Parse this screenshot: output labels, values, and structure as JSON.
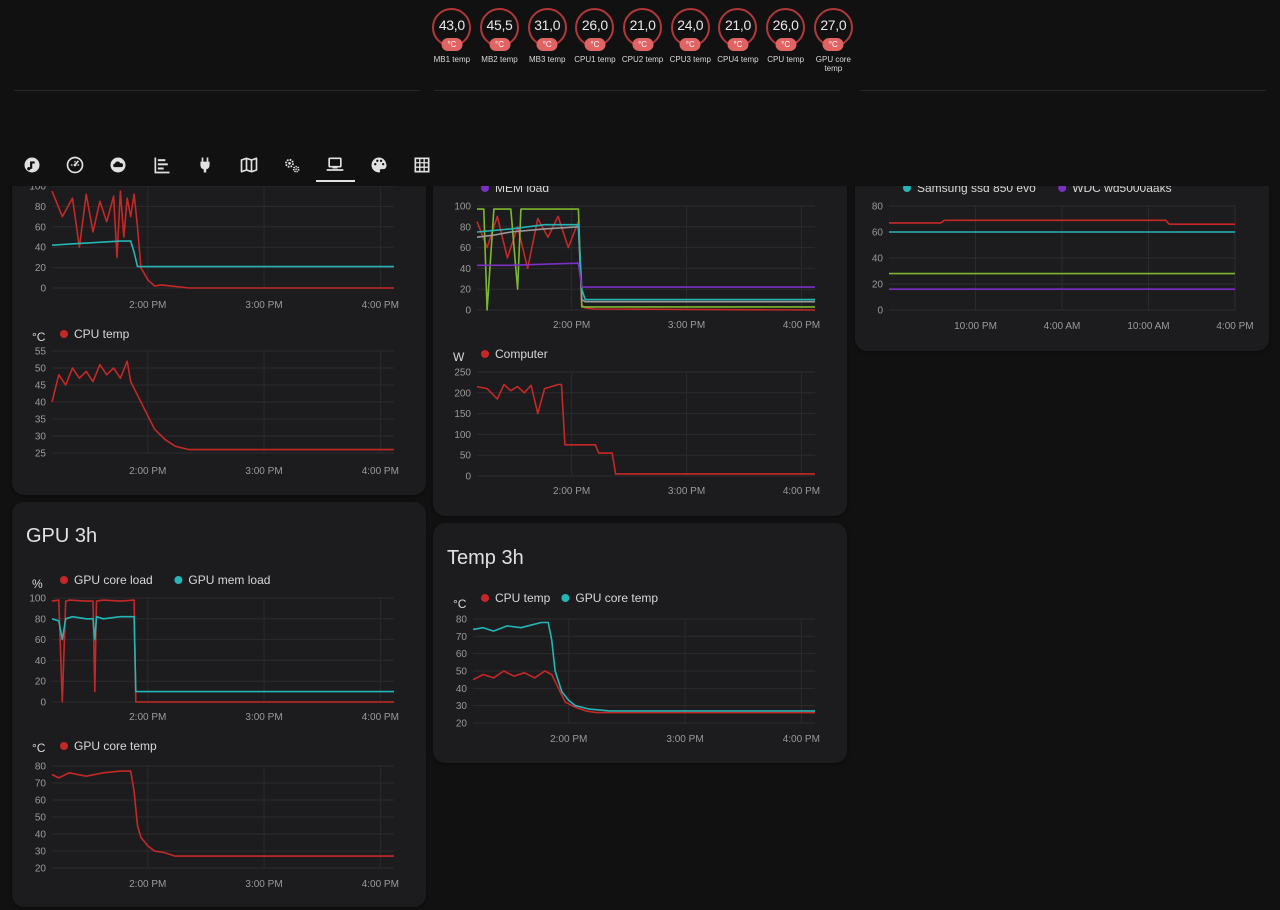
{
  "header": {
    "badges": [
      {
        "value": "43,0",
        "unit": "°C",
        "label": "MB1 temp"
      },
      {
        "value": "45,5",
        "unit": "°C",
        "label": "MB2 temp"
      },
      {
        "value": "31,0",
        "unit": "°C",
        "label": "MB3 temp"
      },
      {
        "value": "26,0",
        "unit": "°C",
        "label": "CPU1 temp"
      },
      {
        "value": "21,0",
        "unit": "°C",
        "label": "CPU2 temp"
      },
      {
        "value": "24,0",
        "unit": "°C",
        "label": "CPU3 temp"
      },
      {
        "value": "21,0",
        "unit": "°C",
        "label": "CPU4 temp"
      },
      {
        "value": "26,0",
        "unit": "°C",
        "label": "CPU temp"
      },
      {
        "value": "27,0",
        "unit": "°C",
        "label": "GPU core temp"
      }
    ],
    "tabs": [
      {
        "icon": "music-note-icon",
        "active": false
      },
      {
        "icon": "speedometer-icon",
        "active": false
      },
      {
        "icon": "cloud-icon",
        "active": false
      },
      {
        "icon": "timeline-icon",
        "active": false
      },
      {
        "icon": "power-plug-icon",
        "active": false
      },
      {
        "icon": "map-icon",
        "active": false
      },
      {
        "icon": "cogs-icon",
        "active": false
      },
      {
        "icon": "laptop-icon",
        "active": true
      },
      {
        "icon": "palette-icon",
        "active": false
      },
      {
        "icon": "grid-icon",
        "active": false
      }
    ]
  },
  "cards": {
    "gpu_title": "GPU 3h",
    "temp_title": "Temp 3h"
  },
  "colors": {
    "red": "#c62828",
    "teal": "#26b5b5",
    "purple": "#7b2fc4",
    "green": "#7cb82f",
    "gray": "#9a9a9a",
    "orange": "#d98c2b"
  },
  "chart_data": [
    {
      "id": "cpu-load",
      "type": "line",
      "unit": "",
      "x_ticks": [
        "2:00 PM",
        "3:00 PM",
        "4:00 PM"
      ],
      "y_ticks": [
        0,
        20,
        40,
        60,
        80,
        100
      ],
      "ylim": [
        0,
        100
      ],
      "legend": [],
      "series": [
        {
          "name": "",
          "color": "red",
          "x": [
            0,
            0.03,
            0.06,
            0.08,
            0.1,
            0.12,
            0.14,
            0.16,
            0.18,
            0.19,
            0.2,
            0.21,
            0.22,
            0.23,
            0.24,
            0.25,
            0.26,
            0.28,
            0.3,
            0.32,
            0.4,
            0.5,
            1.0
          ],
          "y": [
            95,
            70,
            88,
            40,
            92,
            55,
            85,
            65,
            90,
            30,
            95,
            50,
            88,
            70,
            92,
            60,
            20,
            8,
            2,
            3,
            0,
            0,
            0
          ]
        },
        {
          "name": "",
          "color": "teal",
          "x": [
            0,
            0.05,
            0.1,
            0.15,
            0.2,
            0.23,
            0.24,
            0.25,
            1.0
          ],
          "y": [
            42,
            43,
            44,
            45,
            46,
            46,
            35,
            21,
            21
          ]
        }
      ]
    },
    {
      "id": "cpu-temp",
      "type": "line",
      "unit": "°C",
      "x_ticks": [
        "2:00 PM",
        "3:00 PM",
        "4:00 PM"
      ],
      "y_ticks": [
        25,
        30,
        35,
        40,
        45,
        50,
        55
      ],
      "ylim": [
        25,
        55
      ],
      "legend": [
        "CPU temp"
      ],
      "series": [
        {
          "name": "CPU temp",
          "color": "red",
          "x": [
            0,
            0.02,
            0.04,
            0.06,
            0.08,
            0.1,
            0.12,
            0.14,
            0.16,
            0.18,
            0.2,
            0.22,
            0.23,
            0.25,
            0.27,
            0.3,
            0.33,
            0.36,
            0.4,
            0.45,
            1.0
          ],
          "y": [
            40,
            48,
            45,
            50,
            47,
            49,
            46,
            51,
            48,
            50,
            47,
            52,
            46,
            42,
            38,
            32,
            29,
            27,
            26,
            26,
            26
          ]
        }
      ]
    },
    {
      "id": "mem-load",
      "type": "line",
      "unit": "",
      "x_ticks": [
        "2:00 PM",
        "3:00 PM",
        "4:00 PM"
      ],
      "y_ticks": [
        0,
        20,
        40,
        60,
        80,
        100
      ],
      "ylim": [
        0,
        100
      ],
      "legend": [
        "MEM load"
      ],
      "series": [
        {
          "name": "",
          "color": "red",
          "x": [
            0,
            0.03,
            0.06,
            0.09,
            0.12,
            0.15,
            0.18,
            0.21,
            0.24,
            0.27,
            0.3,
            0.31,
            0.32,
            0.35,
            1.0
          ],
          "y": [
            85,
            60,
            90,
            50,
            80,
            40,
            88,
            70,
            90,
            60,
            85,
            5,
            2,
            1,
            0
          ]
        },
        {
          "name": "",
          "color": "green",
          "x": [
            0,
            0.02,
            0.03,
            0.05,
            0.1,
            0.12,
            0.13,
            0.15,
            0.2,
            0.25,
            0.3,
            0.31,
            0.32,
            1.0
          ],
          "y": [
            97,
            97,
            0,
            97,
            97,
            20,
            97,
            97,
            97,
            97,
            97,
            3,
            3,
            3
          ]
        },
        {
          "name": "",
          "color": "gray",
          "x": [
            0,
            0.05,
            0.1,
            0.2,
            0.3,
            0.31,
            0.32,
            1.0
          ],
          "y": [
            70,
            72,
            75,
            78,
            80,
            10,
            8,
            8
          ]
        },
        {
          "name": "",
          "color": "teal",
          "x": [
            0,
            0.1,
            0.2,
            0.3,
            0.31,
            0.32,
            1.0
          ],
          "y": [
            75,
            78,
            82,
            82,
            20,
            10,
            10
          ]
        },
        {
          "name": "MEM load",
          "color": "purple",
          "x": [
            0,
            0.1,
            0.2,
            0.3,
            0.31,
            0.32,
            1.0
          ],
          "y": [
            43,
            43,
            44,
            45,
            22,
            22,
            22
          ]
        }
      ]
    },
    {
      "id": "computer-power",
      "type": "line",
      "unit": "W",
      "x_ticks": [
        "2:00 PM",
        "3:00 PM",
        "4:00 PM"
      ],
      "y_ticks": [
        0,
        50,
        100,
        150,
        200,
        250
      ],
      "ylim": [
        0,
        250
      ],
      "legend": [
        "Computer"
      ],
      "series": [
        {
          "name": "Computer",
          "color": "red",
          "x": [
            0,
            0.03,
            0.06,
            0.08,
            0.1,
            0.12,
            0.14,
            0.16,
            0.18,
            0.2,
            0.22,
            0.24,
            0.25,
            0.26,
            0.3,
            0.35,
            0.36,
            0.4,
            0.41,
            1.0
          ],
          "y": [
            215,
            210,
            185,
            220,
            205,
            215,
            200,
            218,
            150,
            210,
            215,
            220,
            220,
            75,
            75,
            75,
            55,
            55,
            5,
            5
          ]
        }
      ]
    },
    {
      "id": "storage-temp",
      "type": "line",
      "unit": "",
      "x_ticks": [
        "10:00 PM",
        "4:00 AM",
        "10:00 AM",
        "4:00 PM"
      ],
      "y_ticks": [
        0,
        20,
        40,
        60,
        80
      ],
      "ylim": [
        0,
        80
      ],
      "legend": [
        "Samsung ssd 850 evo",
        "WDC wd5000aaks"
      ],
      "series": [
        {
          "name": "",
          "color": "red",
          "x": [
            0,
            0.15,
            0.16,
            0.5,
            0.8,
            0.81,
            1.0
          ],
          "y": [
            67,
            67,
            69,
            69,
            69,
            66,
            66
          ]
        },
        {
          "name": "Samsung ssd 850 evo",
          "color": "teal",
          "x": [
            0,
            1.0
          ],
          "y": [
            60,
            60
          ]
        },
        {
          "name": "",
          "color": "green",
          "x": [
            0,
            1.0
          ],
          "y": [
            28,
            28
          ]
        },
        {
          "name": "WDC wd5000aaks",
          "color": "purple",
          "x": [
            0,
            1.0
          ],
          "y": [
            16,
            16
          ]
        }
      ]
    },
    {
      "id": "gpu-load",
      "type": "line",
      "unit": "%",
      "x_ticks": [
        "2:00 PM",
        "3:00 PM",
        "4:00 PM"
      ],
      "y_ticks": [
        0,
        20,
        40,
        60,
        80,
        100
      ],
      "ylim": [
        0,
        100
      ],
      "legend": [
        "GPU core load",
        "GPU mem load"
      ],
      "series": [
        {
          "name": "GPU core load",
          "color": "red",
          "x": [
            0,
            0.02,
            0.03,
            0.04,
            0.05,
            0.1,
            0.12,
            0.125,
            0.13,
            0.15,
            0.2,
            0.24,
            0.245,
            1.0
          ],
          "y": [
            97,
            98,
            0,
            97,
            98,
            97,
            97,
            10,
            97,
            98,
            97,
            98,
            0,
            0
          ]
        },
        {
          "name": "GPU mem load",
          "color": "teal",
          "x": [
            0,
            0.02,
            0.03,
            0.04,
            0.06,
            0.1,
            0.12,
            0.125,
            0.13,
            0.15,
            0.2,
            0.24,
            0.245,
            1.0
          ],
          "y": [
            80,
            78,
            60,
            80,
            82,
            80,
            80,
            60,
            82,
            80,
            82,
            82,
            10,
            10
          ]
        }
      ]
    },
    {
      "id": "gpu-temp",
      "type": "line",
      "unit": "°C",
      "x_ticks": [
        "2:00 PM",
        "3:00 PM",
        "4:00 PM"
      ],
      "y_ticks": [
        20,
        30,
        40,
        50,
        60,
        70,
        80
      ],
      "ylim": [
        20,
        80
      ],
      "legend": [
        "GPU core temp"
      ],
      "series": [
        {
          "name": "GPU core temp",
          "color": "red",
          "x": [
            0,
            0.02,
            0.05,
            0.1,
            0.15,
            0.2,
            0.23,
            0.24,
            0.25,
            0.26,
            0.28,
            0.3,
            0.33,
            0.36,
            0.4,
            1.0
          ],
          "y": [
            75,
            73,
            76,
            74,
            76,
            77,
            77,
            65,
            45,
            38,
            33,
            30,
            29,
            27,
            27,
            27
          ]
        }
      ]
    },
    {
      "id": "temp-3h",
      "type": "line",
      "unit": "°C",
      "x_ticks": [
        "2:00 PM",
        "3:00 PM",
        "4:00 PM"
      ],
      "y_ticks": [
        20,
        30,
        40,
        50,
        60,
        70,
        80
      ],
      "ylim": [
        20,
        80
      ],
      "legend": [
        "CPU temp",
        "GPU core temp"
      ],
      "series": [
        {
          "name": "CPU temp",
          "color": "red",
          "x": [
            0,
            0.03,
            0.06,
            0.09,
            0.12,
            0.15,
            0.18,
            0.21,
            0.23,
            0.25,
            0.27,
            0.3,
            0.33,
            0.36,
            0.4,
            1.0
          ],
          "y": [
            45,
            48,
            46,
            50,
            47,
            49,
            46,
            50,
            48,
            40,
            32,
            29,
            27,
            26,
            26,
            26
          ]
        },
        {
          "name": "GPU core temp",
          "color": "teal",
          "x": [
            0,
            0.03,
            0.06,
            0.1,
            0.14,
            0.18,
            0.2,
            0.22,
            0.23,
            0.24,
            0.26,
            0.28,
            0.3,
            0.34,
            0.4,
            1.0
          ],
          "y": [
            74,
            75,
            73,
            76,
            75,
            77,
            78,
            78,
            68,
            50,
            38,
            33,
            30,
            28,
            27,
            27
          ]
        }
      ]
    }
  ]
}
